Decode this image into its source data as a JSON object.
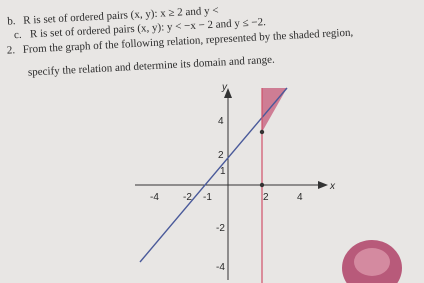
{
  "items": [
    {
      "label": "b.",
      "text": "R is set of ordered pairs (x, y): x ≥ 2 and y <"
    },
    {
      "label": "c.",
      "text": "R is set of ordered pairs (x, y): y < −x − 2 and y ≤ −2."
    },
    {
      "label": "2.",
      "text": "From the graph of the following relation, represented by the shaded region,"
    },
    {
      "label": "",
      "text": "specify the relation and determine its domain and range."
    }
  ],
  "graph": {
    "y_axis_label": "y",
    "x_axis_label": "x",
    "y_tick_labels": [
      "4",
      "2",
      "1",
      "-2",
      "-4"
    ],
    "x_tick_labels": [
      "-4",
      "-2",
      "-1",
      "2",
      "4"
    ]
  }
}
